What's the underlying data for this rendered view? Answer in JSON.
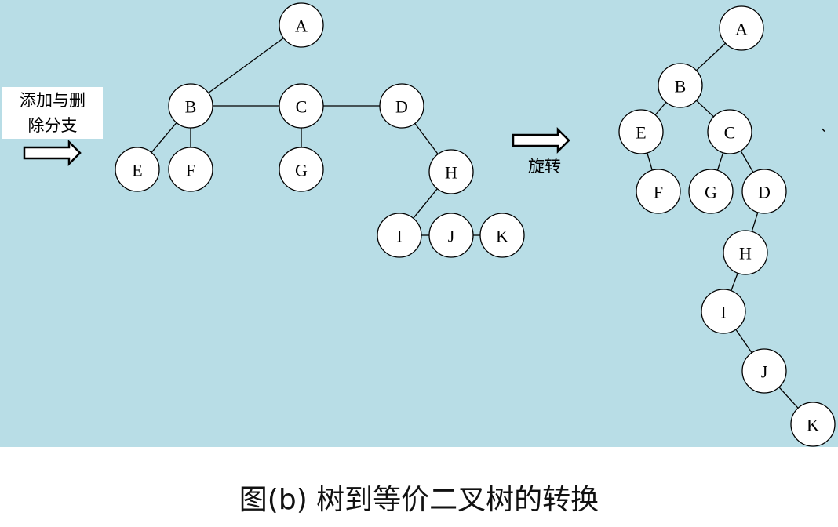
{
  "colors": {
    "background": "#b8dde6",
    "node_fill": "#ffffff",
    "stroke": "#000000"
  },
  "steps": {
    "step1_line1": "添加与删",
    "step1_line2": "除分支",
    "step2": "旋转"
  },
  "caption": "图(b) 树到等价二叉树的转换",
  "stray_mark": "、",
  "tree_before": {
    "nodes": [
      "A",
      "B",
      "C",
      "D",
      "E",
      "F",
      "G",
      "H",
      "I",
      "J",
      "K"
    ],
    "edges": [
      [
        "A",
        "B"
      ],
      [
        "B",
        "C"
      ],
      [
        "C",
        "D"
      ],
      [
        "B",
        "E"
      ],
      [
        "B",
        "F"
      ],
      [
        "C",
        "G"
      ],
      [
        "D",
        "H"
      ],
      [
        "H",
        "I"
      ],
      [
        "I",
        "J"
      ],
      [
        "J",
        "K"
      ]
    ]
  },
  "tree_after": {
    "nodes": [
      "A",
      "B",
      "C",
      "D",
      "E",
      "F",
      "G",
      "H",
      "I",
      "J",
      "K"
    ],
    "edges": [
      [
        "A",
        "B"
      ],
      [
        "B",
        "E"
      ],
      [
        "B",
        "C"
      ],
      [
        "E",
        "F"
      ],
      [
        "C",
        "G"
      ],
      [
        "C",
        "D"
      ],
      [
        "D",
        "H"
      ],
      [
        "H",
        "I"
      ],
      [
        "I",
        "J"
      ],
      [
        "J",
        "K"
      ]
    ]
  }
}
